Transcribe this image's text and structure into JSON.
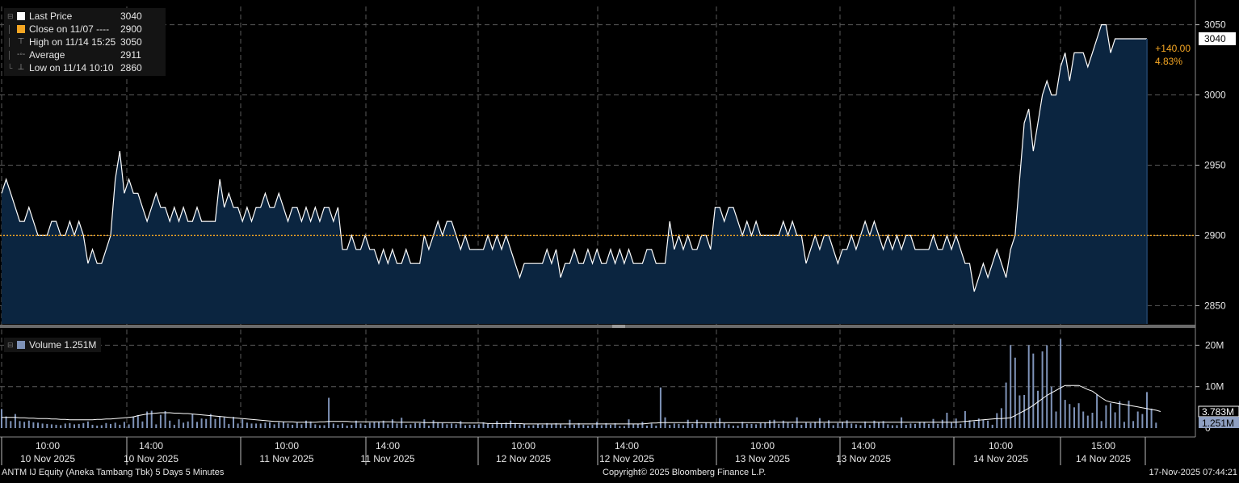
{
  "chart_data": {
    "type": "area",
    "title": "ANTM IJ Equity (Aneka Tambang Tbk) 5 Days 5 Minutes",
    "price_panel": {
      "ylim": [
        2837,
        3063
      ],
      "y_ticks": [
        "2850",
        "2900",
        "2950",
        "3000",
        "3050"
      ],
      "reference_line": 2900,
      "last_price": "3040",
      "change_abs": "+140.00",
      "change_pct": "4.83%",
      "series": [
        {
          "name": "Last Price",
          "color": "#ffffff",
          "values": [
            2930,
            2940,
            2930,
            2920,
            2910,
            2910,
            2920,
            2910,
            2900,
            2900,
            2900,
            2910,
            2910,
            2900,
            2900,
            2910,
            2900,
            2910,
            2900,
            2880,
            2890,
            2880,
            2880,
            2890,
            2900,
            2940,
            2960,
            2930,
            2940,
            2930,
            2930,
            2920,
            2910,
            2920,
            2930,
            2920,
            2920,
            2910,
            2920,
            2910,
            2920,
            2910,
            2910,
            2920,
            2910,
            2910,
            2910,
            2910,
            2940,
            2920,
            2930,
            2920,
            2920,
            2910,
            2920,
            2910,
            2920,
            2920,
            2930,
            2920,
            2920,
            2930,
            2920,
            2910,
            2920,
            2920,
            2910,
            2920,
            2910,
            2920,
            2910,
            2920,
            2920,
            2910,
            2920,
            2890,
            2890,
            2900,
            2890,
            2890,
            2900,
            2890,
            2890,
            2880,
            2890,
            2880,
            2890,
            2880,
            2880,
            2890,
            2880,
            2880,
            2880,
            2900,
            2890,
            2900,
            2910,
            2900,
            2910,
            2910,
            2900,
            2890,
            2900,
            2890,
            2890,
            2890,
            2890,
            2900,
            2890,
            2900,
            2890,
            2900,
            2890,
            2880,
            2870,
            2880,
            2880,
            2880,
            2880,
            2880,
            2890,
            2880,
            2890,
            2870,
            2880,
            2880,
            2890,
            2880,
            2880,
            2890,
            2880,
            2890,
            2880,
            2880,
            2890,
            2880,
            2890,
            2880,
            2890,
            2880,
            2880,
            2880,
            2890,
            2890,
            2880,
            2880,
            2880,
            2910,
            2890,
            2900,
            2890,
            2900,
            2890,
            2890,
            2900,
            2900,
            2890,
            2920,
            2920,
            2910,
            2920,
            2920,
            2910,
            2900,
            2910,
            2900,
            2910,
            2900,
            2900,
            2900,
            2900,
            2900,
            2910,
            2900,
            2910,
            2900,
            2900,
            2880,
            2890,
            2900,
            2890,
            2900,
            2900,
            2890,
            2880,
            2890,
            2890,
            2900,
            2890,
            2900,
            2910,
            2900,
            2910,
            2900,
            2890,
            2900,
            2890,
            2900,
            2890,
            2900,
            2900,
            2890,
            2890,
            2890,
            2890,
            2900,
            2890,
            2890,
            2900,
            2890,
            2900,
            2890,
            2880,
            2880,
            2860,
            2870,
            2880,
            2870,
            2880,
            2890,
            2880,
            2870,
            2890,
            2900,
            2940,
            2980,
            2990,
            2960,
            2980,
            3000,
            3010,
            3000,
            3000,
            3020,
            3030,
            3010,
            3030,
            3030,
            3030,
            3020,
            3030,
            3040,
            3050,
            3050,
            3030,
            3040,
            3040,
            3040,
            3040,
            3040,
            3040,
            3040,
            3040
          ]
        },
        {
          "name": "Close on 11/07",
          "color": "#f5a623",
          "values": [
            2900
          ]
        }
      ]
    },
    "volume_panel": {
      "label": "Volume 1.251M",
      "ylim": [
        0,
        23
      ],
      "y_ticks": [
        "10M",
        "20M"
      ],
      "avg_label": "3.783M",
      "last_label": "1.251M",
      "series": [
        {
          "name": "Volume",
          "color": "#7f93b8",
          "values": [
            4.6,
            2.8,
            1.7,
            3.4,
            1.7,
            1.5,
            1.8,
            1.4,
            1.3,
            1.1,
            1.0,
            0.9,
            0.8,
            0.7,
            1.1,
            1.2,
            0.9,
            1.0,
            1.2,
            1.6,
            0.8,
            0.6,
            0.7,
            1.2,
            1.0,
            1.3,
            0.8,
            1.5,
            0.9,
            2.8,
            3.1,
            1.6,
            4.0,
            4.2,
            0.9,
            3.2,
            4.1,
            1.8,
            0.8,
            2.1,
            1.3,
            1.6,
            3.4,
            1.5,
            2.3,
            2.2,
            3.4,
            2.2,
            2.8,
            2.6,
            1.0,
            2.7,
            1.1,
            2.1,
            1.3,
            1.1,
            1.1,
            1.1,
            1.3,
            1.4,
            0.9,
            1.4,
            1.5,
            1.1,
            0.8,
            1.3,
            0.9,
            1.8,
            1.6,
            0.9,
            0.7,
            0.7,
            7.3,
            1.1,
            0.8,
            1.1,
            0.6,
            0.8,
            1.8,
            1.1,
            0.8,
            1.3,
            1.4,
            1.4,
            1.8,
            0.9,
            2.1,
            1.1,
            2.5,
            0.8,
            0.9,
            1.2,
            1.2,
            2.1,
            0.6,
            1.9,
            1.4,
            1.2,
            0.9,
            1.1,
            0.9,
            1.7,
            0.7,
            0.8,
            0.8,
            0.9,
            1.4,
            1.0,
            0.9,
            1.7,
            1.0,
            1.3,
            1.8,
            1.2,
            0.9,
            1.0,
            0.6,
            0.7,
            1.0,
            0.8,
            1.2,
            0.9,
            1.2,
            0.9,
            0.5,
            2.0,
            0.8,
            1.2,
            0.8,
            0.6,
            0.8,
            1.5,
            0.7,
            1.2,
            0.8,
            1.2,
            0.5,
            0.5,
            2.1,
            0.9,
            1.0,
            1.5,
            0.6,
            1.1,
            0.6,
            9.8,
            2.6,
            0.8,
            1.1,
            1.0,
            0.7,
            2.0,
            1.0,
            2.0,
            0.9,
            1.3,
            1.3,
            1.2,
            2.4,
            1.2,
            0.9,
            0.6,
            0.6,
            1.5,
            1.0,
            1.0,
            0.9,
            1.2,
            1.3,
            1.9,
            2.0,
            1.0,
            1.8,
            1.3,
            1.0,
            2.6,
            0.8,
            1.3,
            1.2,
            1.5,
            2.4,
            1.2,
            1.9,
            0.7,
            1.2,
            1.5,
            1.9,
            1.1,
            0.9,
            0.7,
            1.6,
            0.8,
            1.8,
            1.3,
            1.7,
            0.9,
            0.7,
            0.7,
            2.6,
            0.8,
            1.1,
            1.0,
            1.5,
            1.5,
            1.0,
            2.2,
            1.0,
            2.0,
            3.7,
            1.3,
            2.3,
            1.0,
            4.1,
            1.9,
            1.6,
            2.3,
            2.0,
            1.8,
            0.8,
            3.6,
            4.8,
            11.0,
            20.0,
            17.0,
            7.9,
            8.0,
            20.0,
            18.0,
            9.0,
            18.5,
            20.0,
            10.0,
            4.0,
            21.5,
            6.8,
            5.8,
            5.0,
            6.0,
            4.0,
            3.0,
            3.7,
            8.1,
            1.7,
            5.5,
            6.0,
            3.8,
            6.5,
            1.5,
            6.6,
            1.7,
            4.0,
            3.4,
            8.7,
            4.7,
            1.3
          ]
        },
        {
          "name": "Volume avg",
          "color": "#ffffff",
          "values": [
            2.6,
            2.6,
            2.6,
            2.6,
            2.5,
            2.5,
            2.4,
            2.4,
            2.3,
            2.3,
            2.3,
            2.2,
            2.2,
            2.1,
            2.1,
            2.0,
            2.0,
            2.0,
            2.0,
            2.0,
            2.0,
            2.1,
            2.1,
            2.2,
            2.2,
            2.3,
            2.4,
            2.5,
            2.6,
            2.7,
            3.0,
            3.2,
            3.4,
            3.5,
            3.6,
            3.7,
            3.7,
            3.7,
            3.6,
            3.6,
            3.5,
            3.5,
            3.4,
            3.3,
            3.2,
            3.1,
            3.0,
            2.9,
            2.8,
            2.7,
            2.6,
            2.5,
            2.4,
            2.3,
            2.2,
            2.1,
            2.0,
            1.9,
            1.8,
            1.7,
            1.6,
            1.6,
            1.5,
            1.5,
            1.5,
            1.4,
            1.4,
            1.4,
            1.4,
            1.4,
            1.5,
            1.5,
            1.6,
            1.6,
            1.6,
            1.6,
            1.6,
            1.5,
            1.5,
            1.5,
            1.5,
            1.5,
            1.5,
            1.5,
            1.5,
            1.5,
            1.5,
            1.4,
            1.4,
            1.4,
            1.4,
            1.4,
            1.4,
            1.3,
            1.3,
            1.3,
            1.3,
            1.3,
            1.3,
            1.3,
            1.3,
            1.2,
            1.2,
            1.2,
            1.2,
            1.2,
            1.2,
            1.1,
            1.1,
            1.1,
            1.1,
            1.1,
            1.1,
            1.1,
            1.1,
            1.0,
            1.0,
            1.0,
            1.0,
            1.0,
            1.0,
            1.0,
            1.0,
            1.0,
            1.0,
            1.0,
            1.0,
            1.0,
            1.0,
            1.0,
            1.0,
            1.0,
            1.0,
            1.0,
            1.0,
            1.0,
            1.0,
            1.0,
            1.0,
            1.0,
            1.0,
            1.0,
            1.1,
            1.2,
            1.2,
            1.3,
            1.3,
            1.3,
            1.3,
            1.3,
            1.3,
            1.3,
            1.3,
            1.3,
            1.3,
            1.3,
            1.3,
            1.3,
            1.3,
            1.3,
            1.3,
            1.3,
            1.3,
            1.3,
            1.3,
            1.3,
            1.3,
            1.3,
            1.3,
            1.3,
            1.4,
            1.4,
            1.4,
            1.4,
            1.4,
            1.4,
            1.4,
            1.4,
            1.4,
            1.4,
            1.4,
            1.4,
            1.4,
            1.4,
            1.4,
            1.4,
            1.4,
            1.4,
            1.4,
            1.4,
            1.4,
            1.4,
            1.4,
            1.4,
            1.4,
            1.4,
            1.4,
            1.4,
            1.4,
            1.4,
            1.4,
            1.4,
            1.4,
            1.4,
            1.4,
            1.4,
            1.4,
            1.4,
            1.4,
            1.4,
            1.4,
            1.5,
            1.6,
            1.7,
            1.8,
            1.9,
            2.0,
            2.1,
            2.2,
            2.3,
            2.3,
            2.4,
            2.5,
            3.0,
            3.6,
            4.2,
            4.8,
            5.5,
            6.3,
            7.1,
            7.9,
            8.5,
            9.1,
            9.7,
            10.3,
            10.3,
            10.3,
            10.3,
            9.8,
            9.3,
            8.9,
            8.1,
            7.3,
            6.6,
            6.3,
            6.1,
            5.9,
            5.7,
            5.5,
            5.3,
            5.1,
            4.9,
            4.7,
            4.5,
            4.3,
            4.0
          ]
        }
      ]
    },
    "x_tick_labels": [
      {
        "time": "10:00",
        "date": "10 Nov 2025"
      },
      {
        "time": "14:00",
        "date": "10 Nov 2025"
      },
      {
        "time": "10:00",
        "date": "11 Nov 2025"
      },
      {
        "time": "14:00",
        "date": "11 Nov 2025"
      },
      {
        "time": "10:00",
        "date": "12 Nov 2025"
      },
      {
        "time": "14:00",
        "date": "12 Nov 2025"
      },
      {
        "time": "10:00",
        "date": "13 Nov 2025"
      },
      {
        "time": "14:00",
        "date": "13 Nov 2025"
      },
      {
        "time": "10:00",
        "date": "14 Nov 2025"
      },
      {
        "time": "15:00",
        "date": "14 Nov 2025"
      }
    ],
    "day_separators": [
      "10 Nov 2025",
      "11 Nov 2025",
      "12 Nov 2025",
      "13 Nov 2025",
      "14 Nov 2025"
    ],
    "legend": [
      {
        "label": "Last Price",
        "value": "3040",
        "color": "#ffffff",
        "icon": "square-swatch-icon"
      },
      {
        "label": "Close on 11/07 ----",
        "value": "2900",
        "color": "#f5a623",
        "icon": "square-swatch-icon"
      },
      {
        "label": "High on 11/14 15:25",
        "value": "3050",
        "color": "#aaaaaa",
        "icon": "high-marker-icon"
      },
      {
        "label": "Average",
        "value": "2911",
        "color": "#aaaaaa",
        "icon": "average-marker-icon"
      },
      {
        "label": "Low on 11/14 10:10",
        "value": "2860",
        "color": "#aaaaaa",
        "icon": "low-marker-icon"
      }
    ]
  },
  "footer": {
    "left": "ANTM IJ Equity (Aneka Tambang Tbk) 5 Days 5 Minutes",
    "center": "Copyright© 2025 Bloomberg Finance L.P.",
    "right": "17-Nov-2025 07:44:21"
  },
  "colors": {
    "background": "#000000",
    "area_fill": "#0b2540",
    "price_line": "#ffffff",
    "reference_line": "#f5a623",
    "change_text": "#f5a623",
    "volume_bar": "#7f93b8",
    "grid": "#5a5a5a"
  }
}
